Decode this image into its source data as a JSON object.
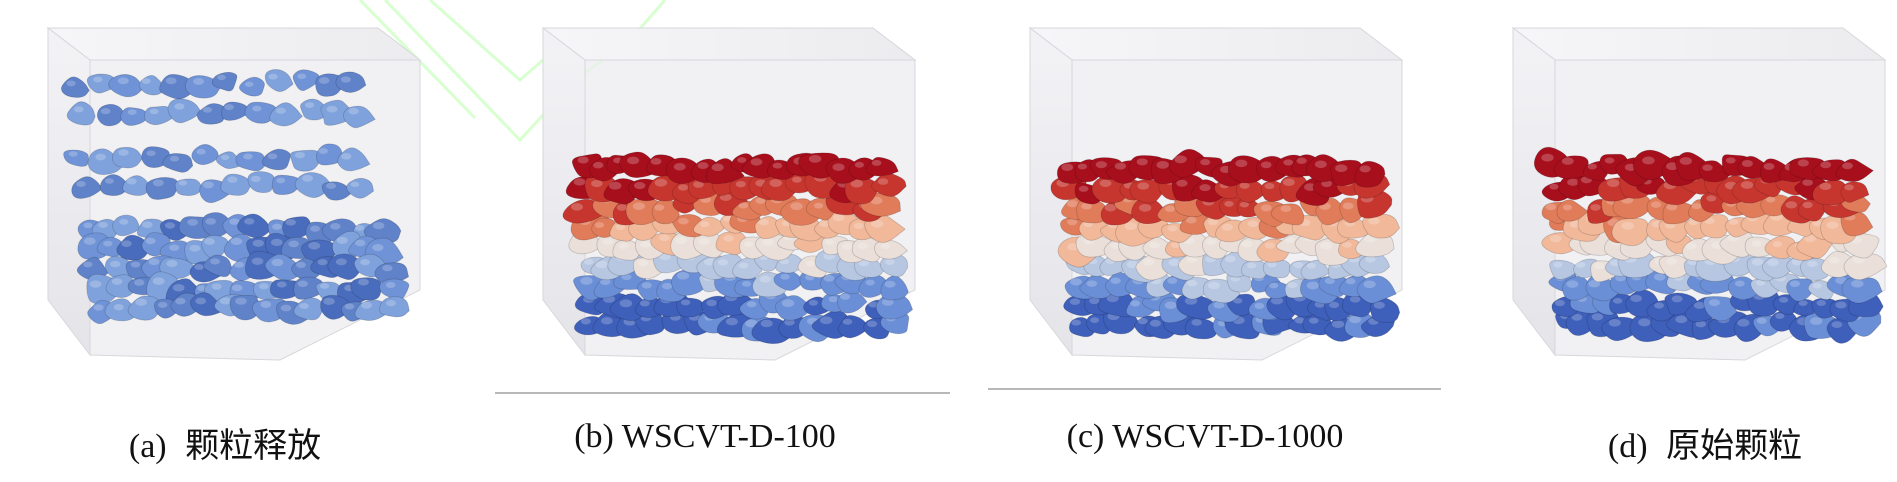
{
  "captions": [
    {
      "label": "(a)",
      "text": "颗粒释放"
    },
    {
      "label": "(b)",
      "text": "WSCVT-D-100"
    },
    {
      "label": "(c)",
      "text": "WSCVT-D-1000"
    },
    {
      "label": "(d)",
      "text": "原始颗粒"
    }
  ],
  "colors": {
    "box_face": "#ececf0",
    "box_edge": "#d7d7dc",
    "watermark": "#d8ffd0",
    "blue_particles": [
      "#5f82c9",
      "#6f93d6",
      "#7fa2dc",
      "#4a6cbd"
    ],
    "height_gradient": [
      "#3e5fba",
      "#6b8fd6",
      "#b7c7e2",
      "#eadfd9",
      "#f1b89a",
      "#e07c5a",
      "#c6362f",
      "#a80f1d"
    ]
  }
}
